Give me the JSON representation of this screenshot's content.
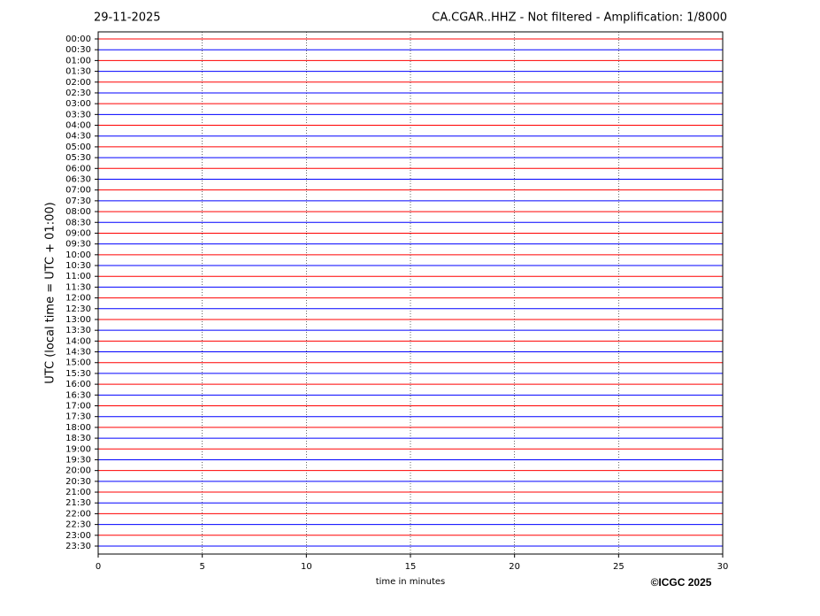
{
  "chart_data": {
    "type": "helicorder",
    "date": "29-11-2025",
    "title": "CA.CGAR..HHZ - Not filtered - Amplification: 1/8000",
    "ylabel": "UTC (local time = UTC + 01:00)",
    "xlabel": "time in minutes",
    "copyright": "©ICGC 2025",
    "categories": [
      "00:00",
      "00:30",
      "01:00",
      "01:30",
      "02:00",
      "02:30",
      "03:00",
      "03:30",
      "04:00",
      "04:30",
      "05:00",
      "05:30",
      "06:00",
      "06:30",
      "07:00",
      "07:30",
      "08:00",
      "08:30",
      "09:00",
      "09:30",
      "10:00",
      "10:30",
      "11:00",
      "11:30",
      "12:00",
      "12:30",
      "13:00",
      "13:30",
      "14:00",
      "14:30",
      "15:00",
      "15:30",
      "16:00",
      "16:30",
      "17:00",
      "17:30",
      "18:00",
      "18:30",
      "19:00",
      "19:30",
      "20:00",
      "20:30",
      "21:00",
      "21:30",
      "22:00",
      "22:30",
      "23:00",
      "23:30"
    ],
    "trace_colors": [
      "#ff0000",
      "#0000ff"
    ],
    "xlim": [
      0,
      30
    ],
    "xticks": [
      0,
      5,
      10,
      15,
      20,
      25,
      30
    ],
    "grid": true
  }
}
